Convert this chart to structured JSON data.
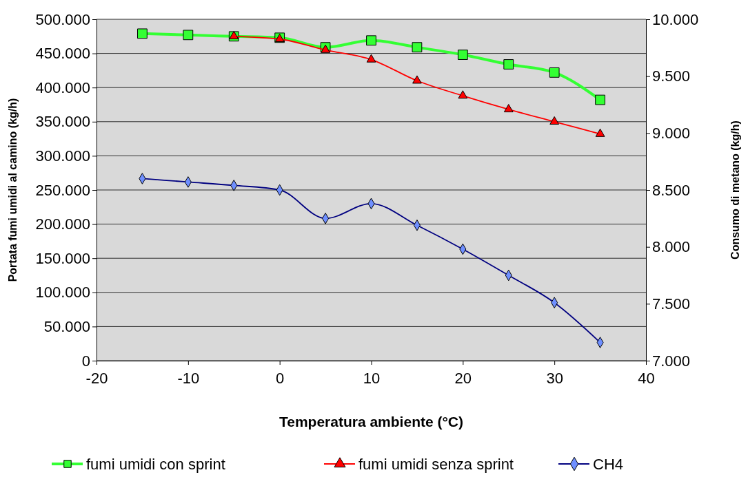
{
  "chart_data": {
    "type": "line",
    "xlabel": "Temperatura ambiente (°C)",
    "ylabel": "Portata fumi umidi al camino (kg/h)",
    "y2label": "Consumo di metano (kg/h)",
    "xlim": [
      -20,
      40
    ],
    "xticks": [
      -20,
      -10,
      0,
      10,
      20,
      30,
      40
    ],
    "ylim": [
      0,
      500000
    ],
    "yticks": [
      {
        "value": 0,
        "label": "0"
      },
      {
        "value": 50000,
        "label": "50.000"
      },
      {
        "value": 100000,
        "label": "100.000"
      },
      {
        "value": 150000,
        "label": "150.000"
      },
      {
        "value": 200000,
        "label": "200.000"
      },
      {
        "value": 250000,
        "label": "250.000"
      },
      {
        "value": 300000,
        "label": "300.000"
      },
      {
        "value": 350000,
        "label": "350.000"
      },
      {
        "value": 400000,
        "label": "400.000"
      },
      {
        "value": 450000,
        "label": "450.000"
      },
      {
        "value": 500000,
        "label": "500.000"
      }
    ],
    "y2lim": [
      7000,
      10000
    ],
    "y2ticks": [
      {
        "value": 7000,
        "label": "7.000"
      },
      {
        "value": 7500,
        "label": "7.500"
      },
      {
        "value": 8000,
        "label": "8.000"
      },
      {
        "value": 8500,
        "label": "8.500"
      },
      {
        "value": 9000,
        "label": "9.000"
      },
      {
        "value": 9500,
        "label": "9.500"
      },
      {
        "value": 10000,
        "label": "10.000"
      }
    ],
    "grid": "y",
    "legend": "bottom",
    "line_style": "solid",
    "series": [
      {
        "name": "fumi umidi con sprint",
        "color": "#33ff33",
        "marker": "square",
        "x": [
          -15,
          -10,
          -5,
          0,
          5,
          10,
          15,
          20,
          25,
          30,
          35
        ],
        "values": [
          479000,
          477000,
          475000,
          473000,
          459000,
          469000,
          459000,
          448000,
          434000,
          422000,
          382000
        ]
      },
      {
        "name": "fumi umidi senza sprint",
        "color": "#ff0000",
        "marker": "triangle",
        "x": [
          -5,
          0,
          5,
          10,
          15,
          20,
          25,
          30,
          35
        ],
        "values": [
          475000,
          471000,
          455000,
          441000,
          410000,
          388000,
          368000,
          350000,
          332000
        ]
      },
      {
        "name": "CH4",
        "color": "#000080",
        "marker": "diamond",
        "axis": "y2",
        "x": [
          -15,
          -10,
          -5,
          0,
          5,
          10,
          15,
          20,
          25,
          30,
          35
        ],
        "values": [
          8600,
          8570,
          8540,
          8500,
          8250,
          8380,
          8190,
          7980,
          7750,
          7510,
          7160
        ]
      }
    ]
  }
}
